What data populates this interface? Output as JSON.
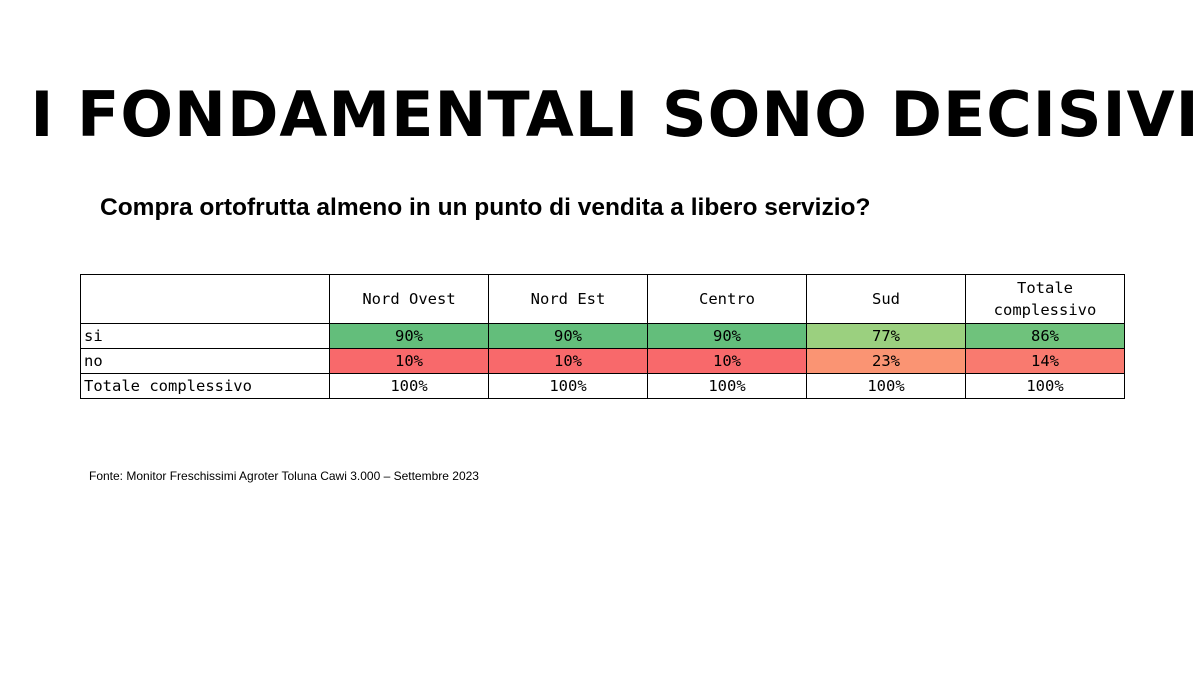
{
  "title": "I FONDAMENTALI SONO DECISIVI",
  "subtitle": "Compra ortofrutta almeno in un punto di vendita a libero servizio?",
  "table": {
    "columns": [
      "Nord Ovest",
      "Nord Est",
      "Centro",
      "Sud",
      "Totale complessivo"
    ],
    "rows": [
      {
        "label": "si",
        "values": [
          "90%",
          "90%",
          "90%",
          "77%",
          "86%"
        ],
        "colors": [
          "#63BE7B",
          "#63BE7B",
          "#63BE7B",
          "#9BD07F",
          "#6FC27C"
        ]
      },
      {
        "label": "no",
        "values": [
          "10%",
          "10%",
          "10%",
          "23%",
          "14%"
        ],
        "colors": [
          "#F8696B",
          "#F8696B",
          "#F8696B",
          "#FA9473",
          "#F97A6F"
        ]
      },
      {
        "label": "Totale complessivo",
        "values": [
          "100%",
          "100%",
          "100%",
          "100%",
          "100%"
        ],
        "colors": [
          "#FFFFFF",
          "#FFFFFF",
          "#FFFFFF",
          "#FFFFFF",
          "#FFFFFF"
        ]
      }
    ]
  },
  "source": "Fonte: Monitor Freschissimi Agroter Toluna Cawi 3.000 – Settembre 2023"
}
